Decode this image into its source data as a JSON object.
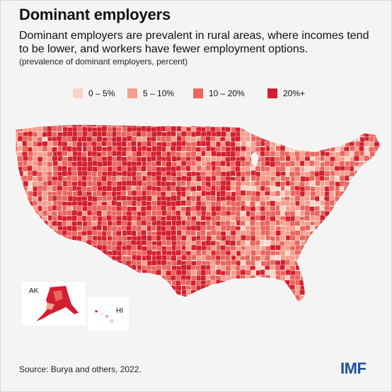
{
  "title": "Dominant employers",
  "subtitle": "Dominant employers are prevalent in rural areas, where incomes tend to be lower, and workers have fewer employment options.",
  "note": "(prevalence of dominant employers, percent)",
  "legend": [
    {
      "label": "0 – 5%",
      "color": "#f9d3c8"
    },
    {
      "label": "5 – 10%",
      "color": "#f4a08f"
    },
    {
      "label": "10 – 20%",
      "color": "#e8675f"
    },
    {
      "label": "20%+",
      "color": "#d31f2f"
    }
  ],
  "insets": {
    "alaska_label": "AK",
    "hawaii_label": "HI"
  },
  "source": "Source: Burya and others, 2022.",
  "logo": "IMF"
}
